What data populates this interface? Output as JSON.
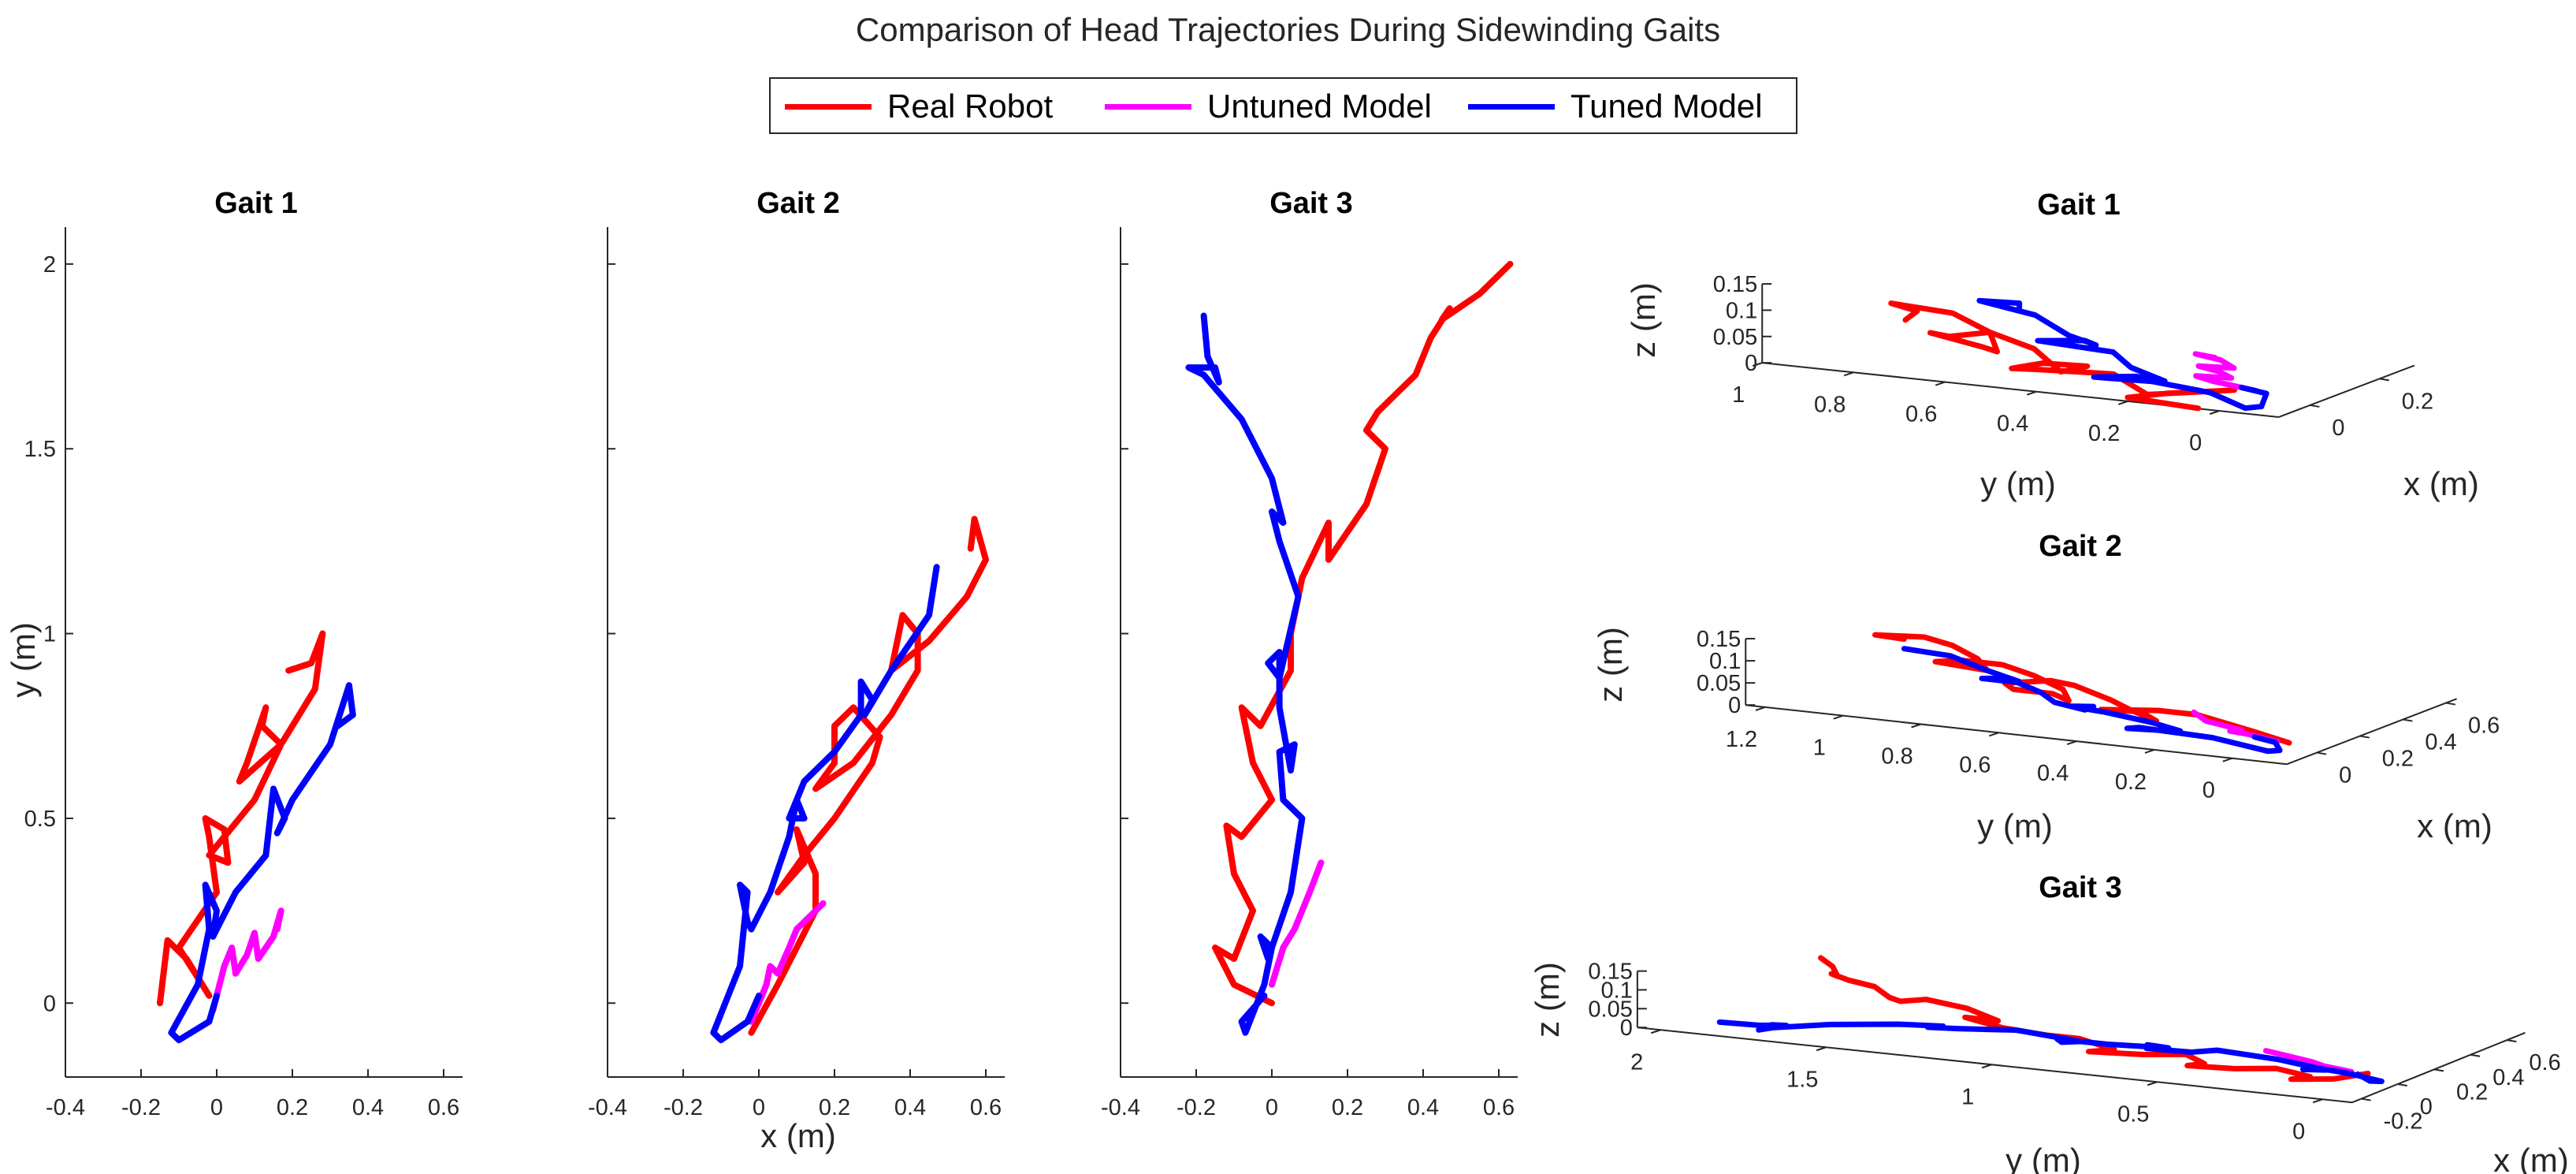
{
  "title": "Comparison of Head Trajectories During Sidewinding Gaits",
  "legend": [
    {
      "label": "Real Robot",
      "color": "#ff0000"
    },
    {
      "label": "Untuned Model",
      "color": "#ff00ff"
    },
    {
      "label": "Tuned Model",
      "color": "#0000ff"
    }
  ],
  "chart_data": [
    {
      "type": "line",
      "title": "Gait 1",
      "xlabel": "",
      "ylabel": "y (m)",
      "xlim": [
        -0.4,
        0.65
      ],
      "ylim": [
        -0.2,
        2.1
      ],
      "xticks": [
        -0.4,
        -0.2,
        0,
        0.2,
        0.4,
        0.6
      ],
      "xticklabels": [
        "-0.4",
        "-0.2",
        "0",
        "0.2",
        "0.4",
        "0.6"
      ],
      "yticks": [
        0,
        0.5,
        1,
        1.5,
        2
      ],
      "yticklabels": [
        "0",
        "0.5",
        "1",
        "1.5",
        "2"
      ],
      "series": [
        {
          "name": "Real Robot",
          "color": "#ff0000",
          "x": [
            -0.15,
            -0.13,
            -0.08,
            -0.02,
            -0.1,
            0.0,
            -0.02,
            -0.03,
            0.02,
            0.03,
            -0.02,
            0.1,
            0.17,
            0.12,
            0.13,
            0.08,
            0.06,
            0.17,
            0.26,
            0.28,
            0.25,
            0.19
          ],
          "y": [
            0.0,
            0.17,
            0.12,
            0.02,
            0.15,
            0.3,
            0.45,
            0.5,
            0.47,
            0.38,
            0.4,
            0.55,
            0.7,
            0.75,
            0.8,
            0.65,
            0.6,
            0.7,
            0.85,
            1.0,
            0.92,
            0.9
          ]
        },
        {
          "name": "Untuned Model",
          "color": "#ff00ff",
          "x": [
            -0.01,
            0.02,
            0.04,
            0.05,
            0.08,
            0.1,
            0.11,
            0.15,
            0.17,
            0.16
          ],
          "y": [
            -0.02,
            0.1,
            0.15,
            0.08,
            0.13,
            0.19,
            0.12,
            0.18,
            0.25,
            0.2
          ]
        },
        {
          "name": "Tuned Model",
          "color": "#0000ff",
          "x": [
            0.0,
            -0.02,
            -0.1,
            -0.12,
            -0.05,
            -0.02,
            -0.03,
            0.0,
            -0.01,
            0.05,
            0.13,
            0.15,
            0.18,
            0.16,
            0.2,
            0.3,
            0.35,
            0.36,
            0.32
          ],
          "y": [
            0.02,
            -0.05,
            -0.1,
            -0.08,
            0.05,
            0.2,
            0.32,
            0.25,
            0.18,
            0.3,
            0.4,
            0.58,
            0.5,
            0.46,
            0.55,
            0.7,
            0.86,
            0.78,
            0.75
          ]
        }
      ]
    },
    {
      "type": "line",
      "title": "Gait 2",
      "xlabel": "x (m)",
      "ylabel": "",
      "xlim": [
        -0.4,
        0.65
      ],
      "ylim": [
        -0.2,
        2.1
      ],
      "xticks": [
        -0.4,
        -0.2,
        0,
        0.2,
        0.4,
        0.6
      ],
      "xticklabels": [
        "-0.4",
        "-0.2",
        "0",
        "0.2",
        "0.4",
        "0.6"
      ],
      "yticks": [
        0,
        0.5,
        1,
        1.5,
        2
      ],
      "yticklabels": [],
      "series": [
        {
          "name": "Real Robot",
          "color": "#ff0000",
          "x": [
            -0.02,
            0.05,
            0.15,
            0.15,
            0.1,
            0.12,
            0.05,
            0.12,
            0.2,
            0.3,
            0.32,
            0.25,
            0.2,
            0.2,
            0.15,
            0.25,
            0.35,
            0.42,
            0.42,
            0.38,
            0.35,
            0.45,
            0.55,
            0.6,
            0.57,
            0.56
          ],
          "y": [
            -0.08,
            0.05,
            0.25,
            0.35,
            0.47,
            0.38,
            0.3,
            0.4,
            0.5,
            0.65,
            0.72,
            0.8,
            0.75,
            0.65,
            0.58,
            0.65,
            0.78,
            0.9,
            1.0,
            1.05,
            0.9,
            0.98,
            1.1,
            1.2,
            1.31,
            1.23
          ]
        },
        {
          "name": "Untuned Model",
          "color": "#ff00ff",
          "x": [
            -0.02,
            0.02,
            0.03,
            0.05,
            0.08,
            0.1,
            0.17
          ],
          "y": [
            -0.05,
            0.05,
            0.1,
            0.08,
            0.15,
            0.2,
            0.27
          ]
        },
        {
          "name": "Tuned Model",
          "color": "#0000ff",
          "x": [
            0.0,
            -0.03,
            -0.1,
            -0.12,
            -0.05,
            -0.03,
            -0.05,
            -0.03,
            -0.02,
            0.03,
            0.08,
            0.1,
            0.12,
            0.08,
            0.12,
            0.2,
            0.27,
            0.27,
            0.3,
            0.28,
            0.35,
            0.45,
            0.47
          ],
          "y": [
            0.02,
            -0.05,
            -0.1,
            -0.08,
            0.1,
            0.3,
            0.32,
            0.22,
            0.2,
            0.3,
            0.45,
            0.55,
            0.5,
            0.5,
            0.6,
            0.68,
            0.78,
            0.87,
            0.82,
            0.78,
            0.9,
            1.05,
            1.18
          ]
        }
      ]
    },
    {
      "type": "line",
      "title": "Gait 3",
      "xlabel": "",
      "ylabel": "",
      "xlim": [
        -0.4,
        0.65
      ],
      "ylim": [
        -0.2,
        2.1
      ],
      "xticks": [
        -0.4,
        -0.2,
        0,
        0.2,
        0.4,
        0.6
      ],
      "xticklabels": [
        "-0.4",
        "-0.2",
        "0",
        "0.2",
        "0.4",
        "0.6"
      ],
      "yticks": [
        0,
        0.5,
        1,
        1.5,
        2
      ],
      "yticklabels": [],
      "series": [
        {
          "name": "Real Robot",
          "color": "#ff0000",
          "x": [
            0.0,
            -0.1,
            -0.15,
            -0.1,
            -0.05,
            -0.1,
            -0.12,
            -0.08,
            0.0,
            -0.05,
            -0.08,
            -0.03,
            0.05,
            0.05,
            0.08,
            0.15,
            0.15,
            0.25,
            0.3,
            0.25,
            0.28,
            0.38,
            0.42,
            0.47,
            0.45,
            0.55,
            0.63
          ],
          "y": [
            0.0,
            0.05,
            0.15,
            0.12,
            0.25,
            0.35,
            0.48,
            0.45,
            0.55,
            0.65,
            0.8,
            0.75,
            0.9,
            1.0,
            1.15,
            1.3,
            1.2,
            1.35,
            1.5,
            1.55,
            1.6,
            1.7,
            1.8,
            1.88,
            1.85,
            1.92,
            2.0
          ]
        },
        {
          "name": "Untuned Model",
          "color": "#ff00ff",
          "x": [
            0.0,
            0.03,
            0.06,
            0.08,
            0.1,
            0.13
          ],
          "y": [
            0.05,
            0.15,
            0.2,
            0.25,
            0.3,
            0.38
          ]
        },
        {
          "name": "Tuned Model",
          "color": "#0000ff",
          "x": [
            -0.02,
            -0.08,
            -0.07,
            -0.02,
            0.0,
            -0.03,
            -0.01,
            0.05,
            0.08,
            0.03,
            0.02,
            0.06,
            0.05,
            0.02,
            0.02,
            -0.01,
            0.02,
            0.07,
            0.02,
            0.0,
            0.03,
            0.0,
            -0.08,
            -0.18,
            -0.22,
            -0.15,
            -0.14,
            -0.17,
            -0.18
          ],
          "y": [
            0.02,
            -0.05,
            -0.08,
            0.05,
            0.15,
            0.18,
            0.12,
            0.3,
            0.5,
            0.55,
            0.68,
            0.7,
            0.63,
            0.8,
            0.95,
            0.92,
            0.88,
            1.1,
            1.25,
            1.33,
            1.3,
            1.42,
            1.58,
            1.7,
            1.72,
            1.72,
            1.68,
            1.75,
            1.86
          ]
        }
      ]
    },
    {
      "type": "line3d",
      "title": "Gait 1",
      "xlabel": "x (m)",
      "ylabel": "y (m)",
      "zlabel": "z (m)",
      "xlim": [
        -0.09,
        0.3
      ],
      "ylim": [
        -0.13,
        1.0
      ],
      "zlim": [
        0,
        0.15
      ],
      "xticks": [
        0,
        0.2
      ],
      "xticklabels": [
        "0",
        "0.2"
      ],
      "yticks": [
        0,
        0.2,
        0.4,
        0.6,
        0.8,
        1
      ],
      "yticklabels": [
        "0",
        "0.2",
        "0.4",
        "0.6",
        "0.8",
        "1"
      ],
      "zticks": [
        0,
        0.05,
        0.1,
        0.15
      ],
      "zticklabels": [
        "0",
        "0.05",
        "0.1",
        "0.15"
      ],
      "series_from": 0
    },
    {
      "type": "line3d",
      "title": "Gait 2",
      "xlabel": "x (m)",
      "ylabel": "y (m)",
      "zlabel": "z (m)",
      "xlim": [
        -0.14,
        0.65
      ],
      "ylim": [
        -0.14,
        1.25
      ],
      "zlim": [
        0,
        0.15
      ],
      "xticks": [
        0,
        0.2,
        0.4,
        0.6
      ],
      "xticklabels": [
        "0",
        "0.2",
        "0.4",
        "0.6"
      ],
      "yticks": [
        0,
        0.2,
        0.4,
        0.6,
        0.8,
        1,
        1.2
      ],
      "yticklabels": [
        "0",
        "0.2",
        "0.4",
        "0.6",
        "0.8",
        "1",
        "1.2"
      ],
      "zticks": [
        0,
        0.05,
        0.1,
        0.15
      ],
      "zticklabels": [
        "0",
        "0.05",
        "0.1",
        "0.15"
      ],
      "series_from": 1
    },
    {
      "type": "line3d",
      "title": "Gait 3",
      "xlabel": "x (m)",
      "ylabel": "y (m)",
      "zlabel": "z (m)",
      "xlim": [
        -0.25,
        0.7
      ],
      "ylim": [
        -0.09,
        2.07
      ],
      "zlim": [
        0,
        0.15
      ],
      "xticks": [
        -0.2,
        0,
        0.2,
        0.4,
        0.6
      ],
      "xticklabels": [
        "-0.2",
        "0",
        "0.2",
        "0.4",
        "0.6"
      ],
      "yticks": [
        0,
        0.5,
        1,
        1.5,
        2
      ],
      "yticklabels": [
        "0",
        "0.5",
        "1",
        "1.5",
        "2"
      ],
      "zticks": [
        0,
        0.05,
        0.1,
        0.15
      ],
      "zticklabels": [
        "0",
        "0.05",
        "0.1",
        "0.15"
      ],
      "series_from": 2
    }
  ]
}
